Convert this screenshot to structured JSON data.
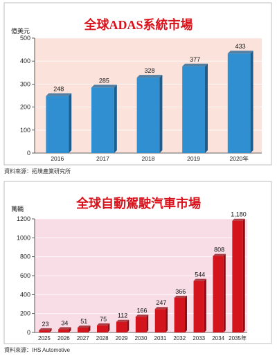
{
  "chart_data": [
    {
      "type": "bar",
      "title": "全球ADAS系統市場",
      "ylabel": "億美元",
      "xlabel": "",
      "categories": [
        "2016",
        "2017",
        "2018",
        "2019",
        "2020年"
      ],
      "values": [
        248,
        285,
        328,
        377,
        433
      ],
      "ylim": [
        0,
        500
      ],
      "yticks": [
        0,
        100,
        200,
        300,
        400,
        500
      ],
      "grid": true,
      "source": "資料來源：拓墣產業研究所",
      "colors": {
        "bar": "#2f8fd0",
        "bar_side": "#1c5d8e",
        "plot_bg": "#fbe3dc",
        "title": "#d9121b"
      }
    },
    {
      "type": "bar",
      "title": "全球自動駕駛汽車市場",
      "ylabel": "萬輛",
      "xlabel": "",
      "categories": [
        "2025",
        "2026",
        "2027",
        "2028",
        "2029",
        "2030",
        "2031",
        "2032",
        "2033",
        "2034",
        "2035年"
      ],
      "values": [
        23,
        34,
        51,
        75,
        112,
        166,
        247,
        366,
        544,
        808,
        1180
      ],
      "value_labels": [
        "23",
        "34",
        "51",
        "75",
        "112",
        "166",
        "247",
        "366",
        "544",
        "808",
        "1,180"
      ],
      "ylim": [
        0,
        1200
      ],
      "yticks": [
        0,
        200,
        400,
        600,
        800,
        1000,
        1200
      ],
      "grid": true,
      "source": "資料來源：IHS Automotive",
      "colors": {
        "bar": "#d4141c",
        "bar_side": "#8e0c12",
        "plot_bg": "#f8dde6",
        "title": "#d9121b"
      }
    }
  ]
}
